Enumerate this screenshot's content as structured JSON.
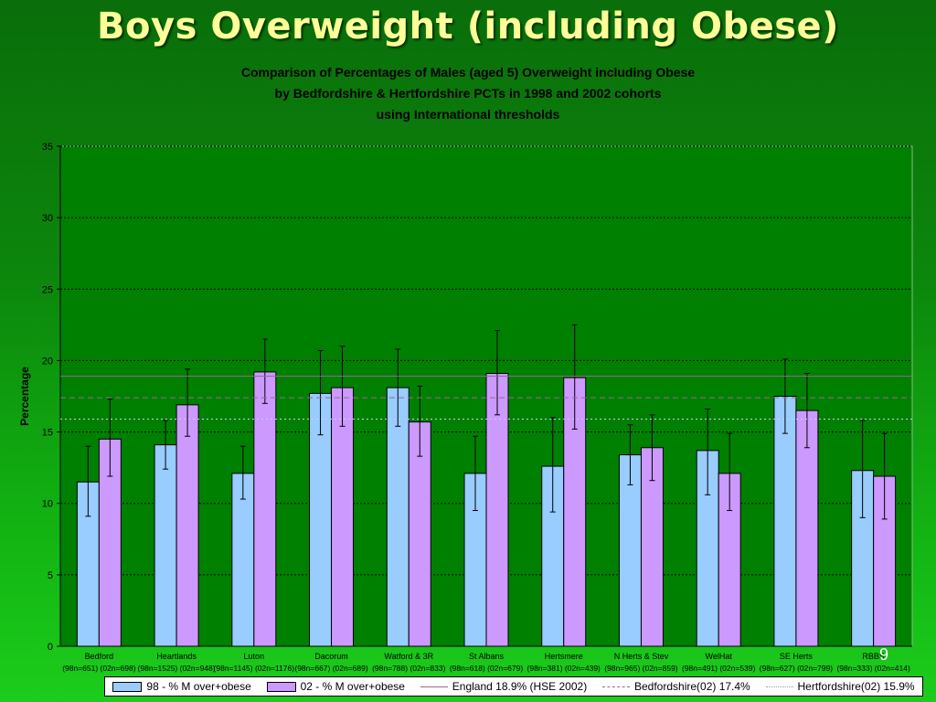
{
  "slide": {
    "title": "Boys Overweight (including Obese)",
    "subtitle_lines": [
      "Comparison of  Percentages of Males (aged 5) Overweight including Obese",
      "by Bedfordshire & Hertfordshire PCTs in 1998 and 2002 cohorts",
      "using International thresholds"
    ],
    "slide_number": "9"
  },
  "colors": {
    "plot_area": "#008000",
    "series_98": "#99ccff",
    "series_02": "#cc99ff",
    "england_line": "#996699",
    "beds_line": "#996699",
    "herts_line": "#ccccff",
    "title_text": "#ffff99"
  },
  "legend": [
    {
      "label": "98 - % M over+obese",
      "kind": "swatch",
      "color": "#99ccff"
    },
    {
      "label": "02 - % M over+obese",
      "kind": "swatch",
      "color": "#cc99ff"
    },
    {
      "label": "England 18.9% (HSE 2002)",
      "kind": "line",
      "style": "solid",
      "color": "#996699"
    },
    {
      "label": "Bedfordshire(02) 17.4%",
      "kind": "line",
      "style": "dashed",
      "color": "#996699"
    },
    {
      "label": "Hertfordshire(02) 15.9%",
      "kind": "line",
      "style": "dotted",
      "color": "#999999"
    }
  ],
  "chart_data": {
    "type": "bar",
    "ylabel": "Percentage",
    "xlabel": "",
    "ylim": [
      0,
      35
    ],
    "yticks": [
      0,
      5,
      10,
      15,
      20,
      25,
      30,
      35
    ],
    "grid": true,
    "legend_position": "bottom",
    "categories": [
      "Bedford",
      "Heartlands",
      "Luton",
      "Dacorum",
      "Watford & 3R",
      "St Albans",
      "Hertsmere",
      "N Herts & Stev",
      "WelHat",
      "SE Herts",
      "RBBS"
    ],
    "category_sublabels": [
      "(98n=651) (02n=698)",
      "(98n=1525) (02n=948)",
      "(98n=1145) (02n=1176)",
      "(98n=667) (02n=689)",
      "(98n=788) (02n=833)",
      "(98n=618) (02n=679)",
      "(98n=381) (02n=439)",
      "(98n=965) (02n=859)",
      "(98n=491) (02n=539)",
      "(98n=627) (02n=799)",
      "(98n=333) (02n=414)"
    ],
    "series": [
      {
        "name": "98 - % M over+obese",
        "values": [
          11.5,
          14.1,
          12.1,
          17.7,
          18.1,
          12.1,
          12.6,
          13.4,
          13.7,
          17.5,
          12.3
        ],
        "error_low": [
          9.1,
          12.4,
          10.3,
          14.8,
          15.4,
          9.5,
          9.4,
          11.3,
          10.6,
          14.9,
          9.0
        ],
        "error_high": [
          14.0,
          15.8,
          14.0,
          20.7,
          20.8,
          14.7,
          16.0,
          15.5,
          16.6,
          20.1,
          15.8
        ]
      },
      {
        "name": "02 - % M over+obese",
        "values": [
          14.5,
          16.9,
          19.2,
          18.1,
          15.7,
          19.1,
          18.8,
          13.9,
          12.1,
          16.5,
          11.9
        ],
        "error_low": [
          11.9,
          14.7,
          17.0,
          15.4,
          13.3,
          16.2,
          15.2,
          11.6,
          9.5,
          13.9,
          8.9
        ],
        "error_high": [
          17.3,
          19.4,
          21.5,
          21.0,
          18.2,
          22.1,
          22.5,
          16.2,
          14.9,
          19.1,
          14.9
        ]
      }
    ],
    "reference_lines": [
      {
        "name": "England 18.9% (HSE 2002)",
        "value": 18.9,
        "style": "solid"
      },
      {
        "name": "Bedfordshire(02) 17.4%",
        "value": 17.4,
        "style": "dashed"
      },
      {
        "name": "Hertfordshire(02) 15.9%",
        "value": 15.9,
        "style": "dotted"
      }
    ]
  }
}
